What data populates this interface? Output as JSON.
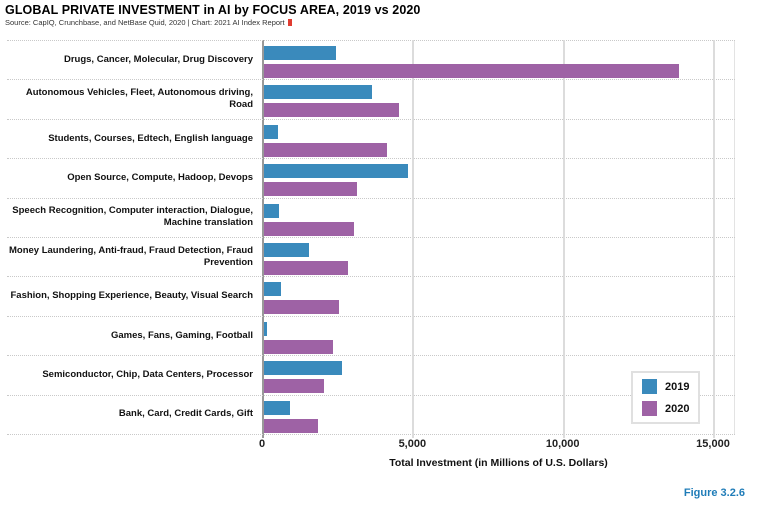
{
  "header": {
    "title": "GLOBAL PRIVATE INVESTMENT in AI by FOCUS AREA, 2019 vs 2020",
    "subtitle": "Source: CapIQ, Crunchbase, and NetBase Quid, 2020 | Chart: 2021 AI Index Report",
    "footer_label": "Figure 3.2.6"
  },
  "chart_data": {
    "type": "bar",
    "orientation": "horizontal",
    "title": "GLOBAL PRIVATE INVESTMENT in AI by FOCUS AREA, 2019 vs 2020",
    "xlabel": "Total Investment (in Millions of U.S. Dollars)",
    "xlim": [
      0,
      15000
    ],
    "xticks": [
      0,
      5000,
      10000,
      15000
    ],
    "xtick_labels": [
      "0",
      "5,000",
      "10,000",
      "15,000"
    ],
    "grid": true,
    "legend_position": "right-lower",
    "categories": [
      "Drugs, Cancer, Molecular, Drug Discovery",
      "Autonomous Vehicles, Fleet, Autonomous driving, Road",
      "Students, Courses, Edtech, English language",
      "Open Source, Compute, Hadoop, Devops",
      "Speech Recognition, Computer interaction, Dialogue, Machine translation",
      "Money Laundering, Anti-fraud, Fraud Detection, Fraud Prevention",
      "Fashion, Shopping Experience, Beauty, Visual Search",
      "Games, Fans, Gaming, Football",
      "Semiconductor, Chip, Data Centers, Processor",
      "Bank, Card, Credit Cards, Gift"
    ],
    "series": [
      {
        "name": "2019",
        "color": "#3a8abc",
        "values": [
          2400,
          3600,
          450,
          4800,
          500,
          1500,
          550,
          100,
          2600,
          850
        ]
      },
      {
        "name": "2020",
        "color": "#9e62a5",
        "values": [
          13800,
          4500,
          4100,
          3100,
          3000,
          2800,
          2500,
          2300,
          2000,
          1800
        ]
      }
    ]
  },
  "colors": {
    "bar_2019": "#3a8abc",
    "bar_2020": "#9e62a5",
    "figure_label": "#1f7cb8",
    "red_mark": "#e03c31",
    "axis_line": "#999999",
    "gridline": "#dcdcdc",
    "separator": "#c9c9c9"
  }
}
